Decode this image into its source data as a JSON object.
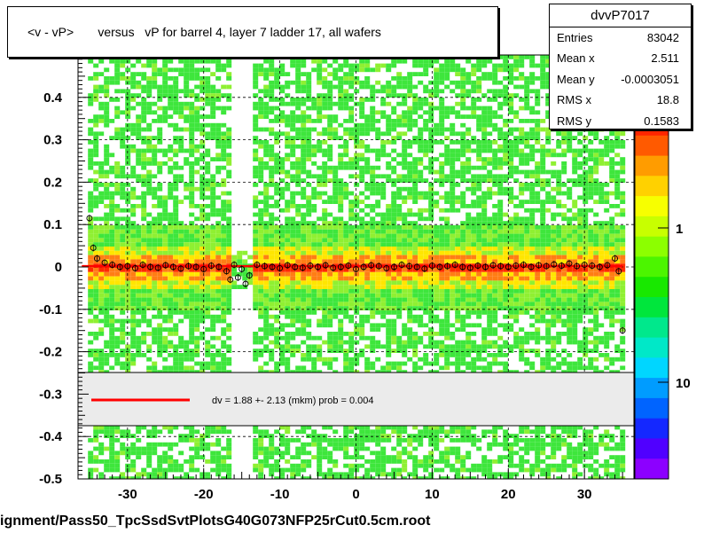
{
  "title": "<v - vP>       versus   vP for barrel 4, layer 7 ladder 17, all wafers",
  "footer": "ignment/Pass50_TpcSsdSvtPlotsG40G073NFP25rCut0.5cm.root",
  "stats": {
    "name": "dvvP7017",
    "rows": [
      {
        "label": "Entries",
        "value": "83042"
      },
      {
        "label": "Mean x",
        "value": "2.511"
      },
      {
        "label": "Mean y",
        "value": "-0.0003051"
      },
      {
        "label": "RMS x",
        "value": "18.8"
      },
      {
        "label": "RMS y",
        "value": "0.1583"
      }
    ]
  },
  "legend_text": "dv =    1.88 +-  2.13 (mkm) prob = 0.004",
  "colorbar_labels": [
    "1",
    "10"
  ],
  "colors": {
    "fit_line": "#ff0000",
    "heat_green": "#3ee63c",
    "heat_lime": "#8ff032",
    "heat_yellow": "#ffe600",
    "heat_orange": "#ff7d14",
    "heat_red": "#ff2a00"
  },
  "chart_data": {
    "type": "heatmap",
    "xlim": [
      -36.5,
      36.5
    ],
    "ylim": [
      -0.5,
      0.5
    ],
    "x_ticks": [
      -30,
      -20,
      -10,
      0,
      10,
      20,
      30
    ],
    "y_ticks": [
      -0.5,
      -0.4,
      -0.3,
      -0.2,
      -0.1,
      0,
      0.1,
      0.2,
      0.3,
      0.4
    ],
    "y_tick_labels": [
      "-0.5",
      "-0.4",
      "-0.3",
      "-0.2",
      "-0.1",
      "0",
      "0.1",
      "0.2",
      "0.3",
      "0.4"
    ],
    "grid": true,
    "profile": {
      "x": [
        -35,
        -34.5,
        -34,
        -33,
        -32,
        -31,
        -30,
        -29,
        -28,
        -27,
        -26,
        -25,
        -24,
        -23,
        -22,
        -21,
        -20,
        -19,
        -18,
        -17,
        -16.5,
        -16,
        -15.5,
        -15,
        -14.5,
        -14,
        -13,
        -12,
        -11,
        -10,
        -9,
        -8,
        -7,
        -6,
        -5,
        -4,
        -3,
        -2,
        -1,
        0,
        1,
        2,
        3,
        4,
        5,
        6,
        7,
        8,
        9,
        10,
        11,
        12,
        13,
        14,
        15,
        16,
        17,
        18,
        19,
        20,
        21,
        22,
        23,
        24,
        25,
        26,
        27,
        28,
        29,
        30,
        31,
        32,
        33,
        34,
        34.5,
        35
      ],
      "y": [
        0.115,
        0.045,
        0.02,
        0.01,
        0.005,
        0.0,
        0.002,
        -0.003,
        0.005,
        0.0,
        -0.002,
        0.004,
        0.0,
        -0.004,
        0.002,
        0.0,
        -0.005,
        0.003,
        0.0,
        -0.01,
        -0.03,
        0.005,
        -0.025,
        -0.005,
        -0.04,
        -0.02,
        0.005,
        0.002,
        0.0,
        -0.003,
        0.004,
        0.0,
        -0.002,
        0.003,
        0.0,
        0.004,
        -0.002,
        0.0,
        0.003,
        -0.005,
        0.0,
        0.004,
        0.002,
        -0.003,
        0.0,
        0.005,
        0.002,
        0.0,
        -0.004,
        0.003,
        0.0,
        0.002,
        0.005,
        0.0,
        -0.002,
        0.003,
        0.0,
        0.004,
        0.002,
        0.0,
        0.003,
        0.005,
        0.0,
        0.004,
        0.002,
        0.006,
        0.003,
        0.008,
        0.002,
        0.005,
        0.003,
        0.0,
        0.004,
        0.02,
        -0.01,
        -0.15
      ]
    },
    "fit": {
      "x": [
        -36,
        35
      ],
      "y": [
        0.00188,
        0.00188
      ]
    }
  }
}
